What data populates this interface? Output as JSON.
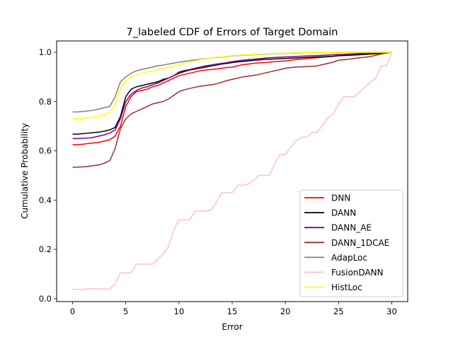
{
  "chart_data": {
    "type": "line",
    "title": "7_labeled CDF of Errors of Target Domain",
    "xlabel": "Error",
    "ylabel": "Cumulative Probability",
    "xlim": [
      -1.5,
      31.5
    ],
    "ylim": [
      -0.012,
      1.046
    ],
    "xticks": [
      0,
      5,
      10,
      15,
      20,
      25,
      30
    ],
    "xtick_labels": [
      "0",
      "5",
      "10",
      "15",
      "20",
      "25",
      "30"
    ],
    "yticks": [
      0.0,
      0.2,
      0.4,
      0.6,
      0.8,
      1.0
    ],
    "ytick_labels": [
      "0.0",
      "0.2",
      "0.4",
      "0.6",
      "0.8",
      "1.0"
    ],
    "grid": false,
    "legend_position": "lower-right",
    "x": [
      0,
      0.5,
      1,
      1.5,
      2,
      2.5,
      3,
      3.5,
      4,
      4.5,
      5,
      5.5,
      6,
      6.5,
      7,
      7.5,
      8,
      8.5,
      9,
      9.5,
      10,
      10.5,
      11,
      11.5,
      12,
      12.5,
      13,
      13.5,
      14,
      14.5,
      15,
      15.5,
      16,
      16.5,
      17,
      17.5,
      18,
      18.5,
      19,
      19.5,
      20,
      20.5,
      21,
      21.5,
      22,
      22.5,
      23,
      23.5,
      24,
      24.5,
      25,
      25.5,
      26,
      26.5,
      27,
      27.5,
      28,
      28.5,
      29,
      29.5,
      30
    ],
    "series": [
      {
        "name": "DNN",
        "color": "#ff0000",
        "values": [
          0.625,
          0.625,
          0.627,
          0.63,
          0.632,
          0.635,
          0.64,
          0.645,
          0.66,
          0.7,
          0.78,
          0.82,
          0.84,
          0.845,
          0.85,
          0.86,
          0.865,
          0.875,
          0.885,
          0.895,
          0.905,
          0.91,
          0.915,
          0.92,
          0.925,
          0.928,
          0.93,
          0.932,
          0.935,
          0.938,
          0.94,
          0.945,
          0.95,
          0.952,
          0.955,
          0.957,
          0.958,
          0.96,
          0.962,
          0.964,
          0.965,
          0.968,
          0.97,
          0.972,
          0.974,
          0.976,
          0.978,
          0.98,
          0.982,
          0.984,
          0.986,
          0.988,
          0.99,
          0.991,
          0.993,
          0.994,
          0.995,
          0.996,
          0.997,
          0.998,
          1.0
        ]
      },
      {
        "name": "DANN",
        "color": "#000000",
        "values": [
          0.668,
          0.668,
          0.67,
          0.672,
          0.674,
          0.676,
          0.68,
          0.685,
          0.695,
          0.74,
          0.82,
          0.85,
          0.86,
          0.865,
          0.87,
          0.875,
          0.88,
          0.89,
          0.895,
          0.905,
          0.915,
          0.922,
          0.928,
          0.932,
          0.936,
          0.94,
          0.944,
          0.948,
          0.952,
          0.955,
          0.958,
          0.961,
          0.963,
          0.965,
          0.967,
          0.969,
          0.971,
          0.972,
          0.973,
          0.974,
          0.975,
          0.976,
          0.977,
          0.978,
          0.979,
          0.98,
          0.981,
          0.982,
          0.983,
          0.984,
          0.986,
          0.987,
          0.988,
          0.989,
          0.99,
          0.991,
          0.993,
          0.994,
          0.996,
          0.998,
          1.0
        ]
      },
      {
        "name": "DANN_AE",
        "color": "#800080",
        "values": [
          0.65,
          0.65,
          0.651,
          0.652,
          0.655,
          0.66,
          0.665,
          0.672,
          0.685,
          0.73,
          0.8,
          0.83,
          0.845,
          0.855,
          0.86,
          0.868,
          0.875,
          0.885,
          0.895,
          0.905,
          0.92,
          0.926,
          0.93,
          0.935,
          0.94,
          0.945,
          0.948,
          0.952,
          0.955,
          0.958,
          0.962,
          0.965,
          0.968,
          0.97,
          0.972,
          0.974,
          0.976,
          0.978,
          0.979,
          0.98,
          0.981,
          0.982,
          0.983,
          0.984,
          0.985,
          0.986,
          0.987,
          0.988,
          0.989,
          0.99,
          0.991,
          0.992,
          0.993,
          0.994,
          0.995,
          0.996,
          0.997,
          0.998,
          0.999,
          0.999,
          1.0
        ]
      },
      {
        "name": "DANN_1DCAE",
        "color": "#a52a2a",
        "values": [
          0.533,
          0.534,
          0.535,
          0.537,
          0.54,
          0.543,
          0.55,
          0.56,
          0.61,
          0.69,
          0.73,
          0.75,
          0.76,
          0.77,
          0.78,
          0.79,
          0.795,
          0.8,
          0.81,
          0.825,
          0.84,
          0.848,
          0.853,
          0.858,
          0.862,
          0.865,
          0.868,
          0.872,
          0.878,
          0.885,
          0.89,
          0.895,
          0.9,
          0.903,
          0.906,
          0.91,
          0.915,
          0.92,
          0.925,
          0.93,
          0.935,
          0.938,
          0.94,
          0.941,
          0.942,
          0.943,
          0.945,
          0.95,
          0.955,
          0.96,
          0.968,
          0.97,
          0.972,
          0.975,
          0.978,
          0.98,
          0.983,
          0.988,
          0.993,
          0.997,
          1.0
        ]
      },
      {
        "name": "AdapLoc",
        "color": "#808080",
        "values": [
          0.758,
          0.758,
          0.76,
          0.762,
          0.765,
          0.77,
          0.775,
          0.78,
          0.82,
          0.88,
          0.9,
          0.915,
          0.925,
          0.93,
          0.935,
          0.94,
          0.945,
          0.948,
          0.952,
          0.956,
          0.96,
          0.963,
          0.966,
          0.969,
          0.972,
          0.975,
          0.977,
          0.979,
          0.981,
          0.983,
          0.985,
          0.987,
          0.988,
          0.989,
          0.99,
          0.991,
          0.992,
          0.993,
          0.994,
          0.995,
          0.996,
          0.996,
          0.997,
          0.997,
          0.998,
          0.998,
          0.998,
          0.999,
          0.999,
          0.999,
          0.999,
          1.0,
          1.0,
          1.0,
          1.0,
          1.0,
          1.0,
          1.0,
          1.0,
          1.0,
          1.0
        ]
      },
      {
        "name": "FusionDANN",
        "color": "#ffc0cb",
        "values": [
          0.037,
          0.037,
          0.037,
          0.04,
          0.04,
          0.04,
          0.04,
          0.04,
          0.06,
          0.105,
          0.105,
          0.105,
          0.14,
          0.14,
          0.14,
          0.14,
          0.16,
          0.18,
          0.21,
          0.28,
          0.32,
          0.32,
          0.32,
          0.355,
          0.355,
          0.355,
          0.36,
          0.39,
          0.43,
          0.43,
          0.43,
          0.46,
          0.46,
          0.465,
          0.48,
          0.5,
          0.5,
          0.5,
          0.55,
          0.585,
          0.585,
          0.615,
          0.64,
          0.655,
          0.655,
          0.675,
          0.675,
          0.705,
          0.735,
          0.75,
          0.79,
          0.82,
          0.82,
          0.82,
          0.84,
          0.86,
          0.88,
          0.895,
          0.945,
          0.945,
          1.0
        ]
      },
      {
        "name": "HistLoc",
        "color": "#ffff00",
        "values": [
          0.73,
          0.73,
          0.732,
          0.735,
          0.738,
          0.742,
          0.748,
          0.755,
          0.79,
          0.855,
          0.885,
          0.9,
          0.91,
          0.915,
          0.92,
          0.925,
          0.93,
          0.935,
          0.94,
          0.945,
          0.95,
          0.955,
          0.96,
          0.965,
          0.97,
          0.974,
          0.977,
          0.98,
          0.982,
          0.984,
          0.986,
          0.988,
          0.989,
          0.99,
          0.991,
          0.992,
          0.993,
          0.994,
          0.995,
          0.996,
          0.997,
          0.997,
          0.998,
          0.998,
          0.998,
          0.999,
          0.999,
          0.999,
          0.999,
          1.0,
          1.0,
          1.0,
          1.0,
          1.0,
          1.0,
          1.0,
          1.0,
          1.0,
          1.0,
          1.0,
          1.0
        ]
      }
    ]
  }
}
